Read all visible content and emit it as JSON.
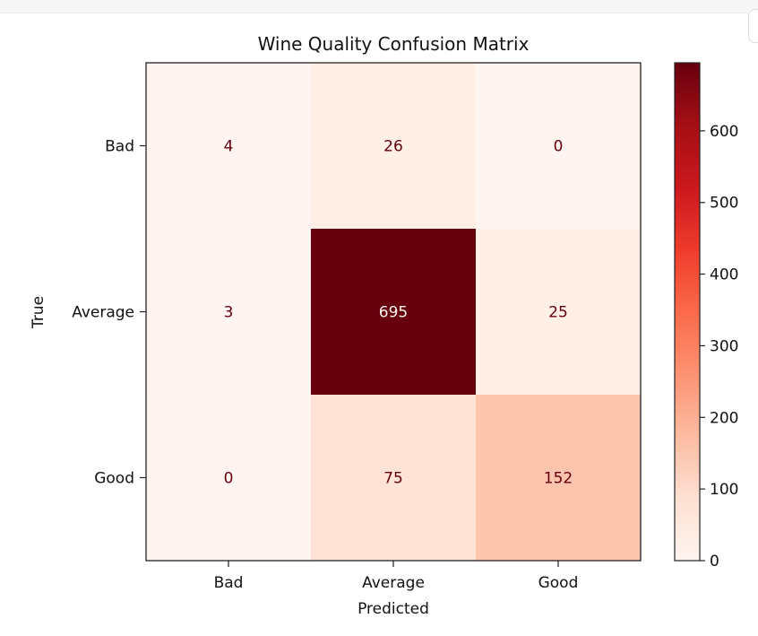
{
  "chart_data": {
    "type": "heatmap",
    "title": "Wine Quality Confusion Matrix",
    "xlabel": "Predicted",
    "ylabel": "True",
    "x_categories": [
      "Bad",
      "Average",
      "Good"
    ],
    "y_categories": [
      "Bad",
      "Average",
      "Good"
    ],
    "matrix": [
      [
        4,
        26,
        0
      ],
      [
        3,
        695,
        25
      ],
      [
        0,
        75,
        152
      ]
    ],
    "colormap": "Reds",
    "colorbar": {
      "range": [
        0,
        695
      ],
      "ticks": [
        0,
        100,
        200,
        300,
        400,
        500,
        600
      ],
      "tick_labels": [
        "0",
        "100",
        "200",
        "300",
        "400",
        "500",
        "600"
      ]
    },
    "colors": {
      "text_on_light": "#67000d",
      "text_on_dark": "#fff5f0"
    }
  }
}
